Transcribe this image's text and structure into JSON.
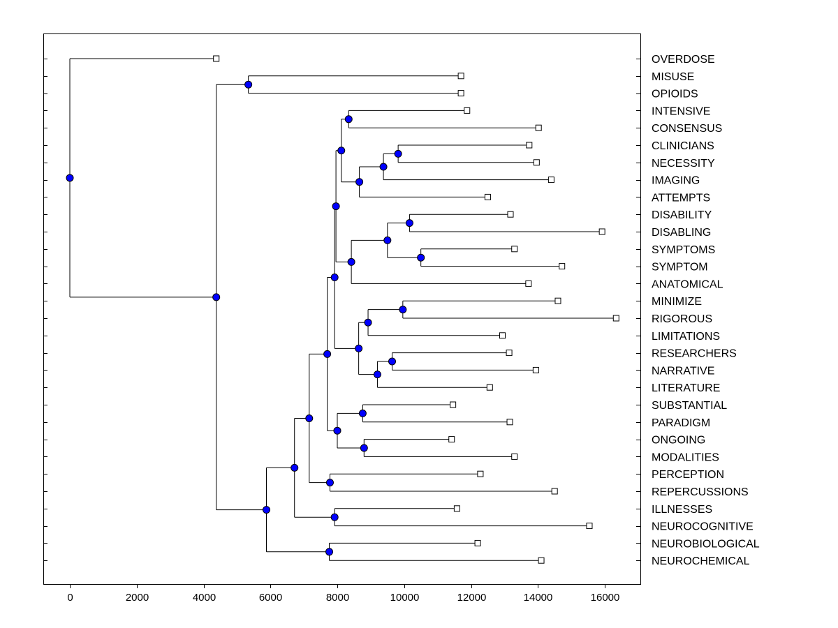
{
  "chart_data": {
    "type": "dendrogram",
    "title": "",
    "xlabel": "",
    "ylabel": "",
    "xlim": [
      -800,
      17200
    ],
    "x_ticks": [
      0,
      2000,
      4000,
      6000,
      8000,
      10000,
      12000,
      14000,
      16000
    ],
    "x_tick_labels": [
      "0",
      "2000",
      "4000",
      "6000",
      "8000",
      "10000",
      "12000",
      "14000",
      "16000"
    ],
    "colors": {
      "node_fill": "#0000ff",
      "leaf_fill": "#ffffff",
      "line": "#000000"
    },
    "leaves": [
      {
        "name": "OVERDOSE",
        "value": 4380
      },
      {
        "name": "MISUSE",
        "value": 11700
      },
      {
        "name": "OPIOIDS",
        "value": 11700
      },
      {
        "name": "INTENSIVE",
        "value": 11880
      },
      {
        "name": "CONSENSUS",
        "value": 14020
      },
      {
        "name": "CLINICIANS",
        "value": 13740
      },
      {
        "name": "NECESSITY",
        "value": 13960
      },
      {
        "name": "IMAGING",
        "value": 14400
      },
      {
        "name": "ATTEMPTS",
        "value": 12500
      },
      {
        "name": "DISABILITY",
        "value": 13180
      },
      {
        "name": "DISABLING",
        "value": 15920
      },
      {
        "name": "SYMPTOMS",
        "value": 13300
      },
      {
        "name": "SYMPTOM",
        "value": 14720
      },
      {
        "name": "ANATOMICAL",
        "value": 13720
      },
      {
        "name": "MINIMIZE",
        "value": 14600
      },
      {
        "name": "RIGOROUS",
        "value": 16340
      },
      {
        "name": "LIMITATIONS",
        "value": 12940
      },
      {
        "name": "RESEARCHERS",
        "value": 13140
      },
      {
        "name": "NARRATIVE",
        "value": 13940
      },
      {
        "name": "LITERATURE",
        "value": 12560
      },
      {
        "name": "SUBSTANTIAL",
        "value": 11460
      },
      {
        "name": "PARADIGM",
        "value": 13160
      },
      {
        "name": "ONGOING",
        "value": 11420
      },
      {
        "name": "MODALITIES",
        "value": 13300
      },
      {
        "name": "PERCEPTION",
        "value": 12280
      },
      {
        "name": "REPERCUSSIONS",
        "value": 14500
      },
      {
        "name": "ILLNESSES",
        "value": 11580
      },
      {
        "name": "NEUROCOGNITIVE",
        "value": 15540
      },
      {
        "name": "NEUROBIOLOGICAL",
        "value": 12200
      },
      {
        "name": "NEUROCHEMICAL",
        "value": 14100
      }
    ],
    "nodes": [
      {
        "id": "n1",
        "value": 8340,
        "children": [
          "L3",
          "L4"
        ]
      },
      {
        "id": "n2",
        "value": 9820,
        "children": [
          "L5",
          "L6"
        ]
      },
      {
        "id": "n3",
        "value": 9380,
        "children": [
          "n2",
          "L7"
        ]
      },
      {
        "id": "n4",
        "value": 8660,
        "children": [
          "n3",
          "L8"
        ]
      },
      {
        "id": "n5",
        "value": 8120,
        "children": [
          "n1",
          "n4"
        ]
      },
      {
        "id": "n6",
        "value": 10160,
        "children": [
          "L9",
          "L10"
        ]
      },
      {
        "id": "n7",
        "value": 10500,
        "children": [
          "L11",
          "L12"
        ]
      },
      {
        "id": "n8",
        "value": 9500,
        "children": [
          "n6",
          "n7"
        ]
      },
      {
        "id": "n9",
        "value": 8420,
        "children": [
          "n8",
          "L13"
        ]
      },
      {
        "id": "n10",
        "value": 7960,
        "children": [
          "n5",
          "n9"
        ]
      },
      {
        "id": "n11",
        "value": 9960,
        "children": [
          "L14",
          "L15"
        ]
      },
      {
        "id": "n12",
        "value": 8920,
        "children": [
          "n11",
          "L16"
        ]
      },
      {
        "id": "n13",
        "value": 9640,
        "children": [
          "L17",
          "L18"
        ]
      },
      {
        "id": "n14",
        "value": 9200,
        "children": [
          "n13",
          "L19"
        ]
      },
      {
        "id": "n15",
        "value": 8640,
        "children": [
          "n12",
          "n14"
        ]
      },
      {
        "id": "n16",
        "value": 7920,
        "children": [
          "n10",
          "n15"
        ]
      },
      {
        "id": "n17",
        "value": 8760,
        "children": [
          "L20",
          "L21"
        ]
      },
      {
        "id": "n18",
        "value": 8800,
        "children": [
          "L22",
          "L23"
        ]
      },
      {
        "id": "n19",
        "value": 8000,
        "children": [
          "n17",
          "n18"
        ]
      },
      {
        "id": "n20",
        "value": 7700,
        "children": [
          "n16",
          "n19"
        ]
      },
      {
        "id": "n21",
        "value": 7780,
        "children": [
          "L24",
          "L25"
        ]
      },
      {
        "id": "n22",
        "value": 7160,
        "children": [
          "n20",
          "n21"
        ]
      },
      {
        "id": "n23",
        "value": 7920,
        "children": [
          "L26",
          "L27"
        ]
      },
      {
        "id": "n24",
        "value": 6720,
        "children": [
          "n22",
          "n23"
        ]
      },
      {
        "id": "n25",
        "value": 7760,
        "children": [
          "L28",
          "L29"
        ]
      },
      {
        "id": "n26",
        "value": 5880,
        "children": [
          "n24",
          "n25"
        ]
      },
      {
        "id": "n27",
        "value": 5340,
        "children": [
          "L1",
          "L2"
        ]
      },
      {
        "id": "n28",
        "value": 4380,
        "children": [
          "n27",
          "n26"
        ]
      },
      {
        "id": "n29",
        "value": 0,
        "children": [
          "L0",
          "n28"
        ]
      }
    ]
  }
}
